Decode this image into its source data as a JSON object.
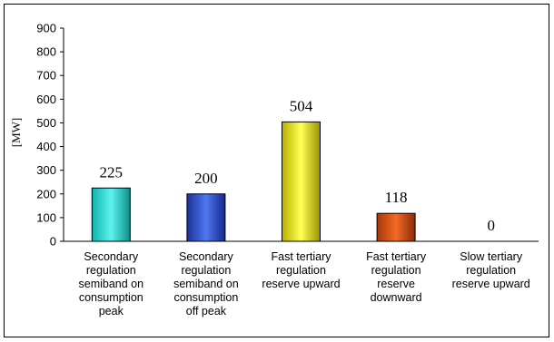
{
  "chart_data": {
    "type": "bar",
    "categories": [
      [
        "Secondary",
        "regulation",
        "semiband on",
        "consumption",
        "peak"
      ],
      [
        "Secondary",
        "regulation",
        "semiband on",
        "consumption",
        "off peak"
      ],
      [
        "Fast tertiary",
        "regulation",
        "reserve upward"
      ],
      [
        "Fast tertiary",
        "regulation",
        "reserve",
        "downward"
      ],
      [
        "Slow tertiary",
        "regulation",
        "reserve upward"
      ]
    ],
    "values": [
      225,
      200,
      504,
      118,
      0
    ],
    "value_labels": [
      "225",
      "200",
      "504",
      "118",
      "0"
    ],
    "ylabel": "[MW]",
    "ylim": [
      0,
      900
    ],
    "yticks": [
      "0",
      "100",
      "200",
      "300",
      "400",
      "500",
      "600",
      "700",
      "800",
      "900"
    ],
    "grid": false,
    "colors": [
      "#22d6d0",
      "#2f4fd8",
      "#e6e61a",
      "#d5521a",
      "#9aa0a6"
    ]
  }
}
